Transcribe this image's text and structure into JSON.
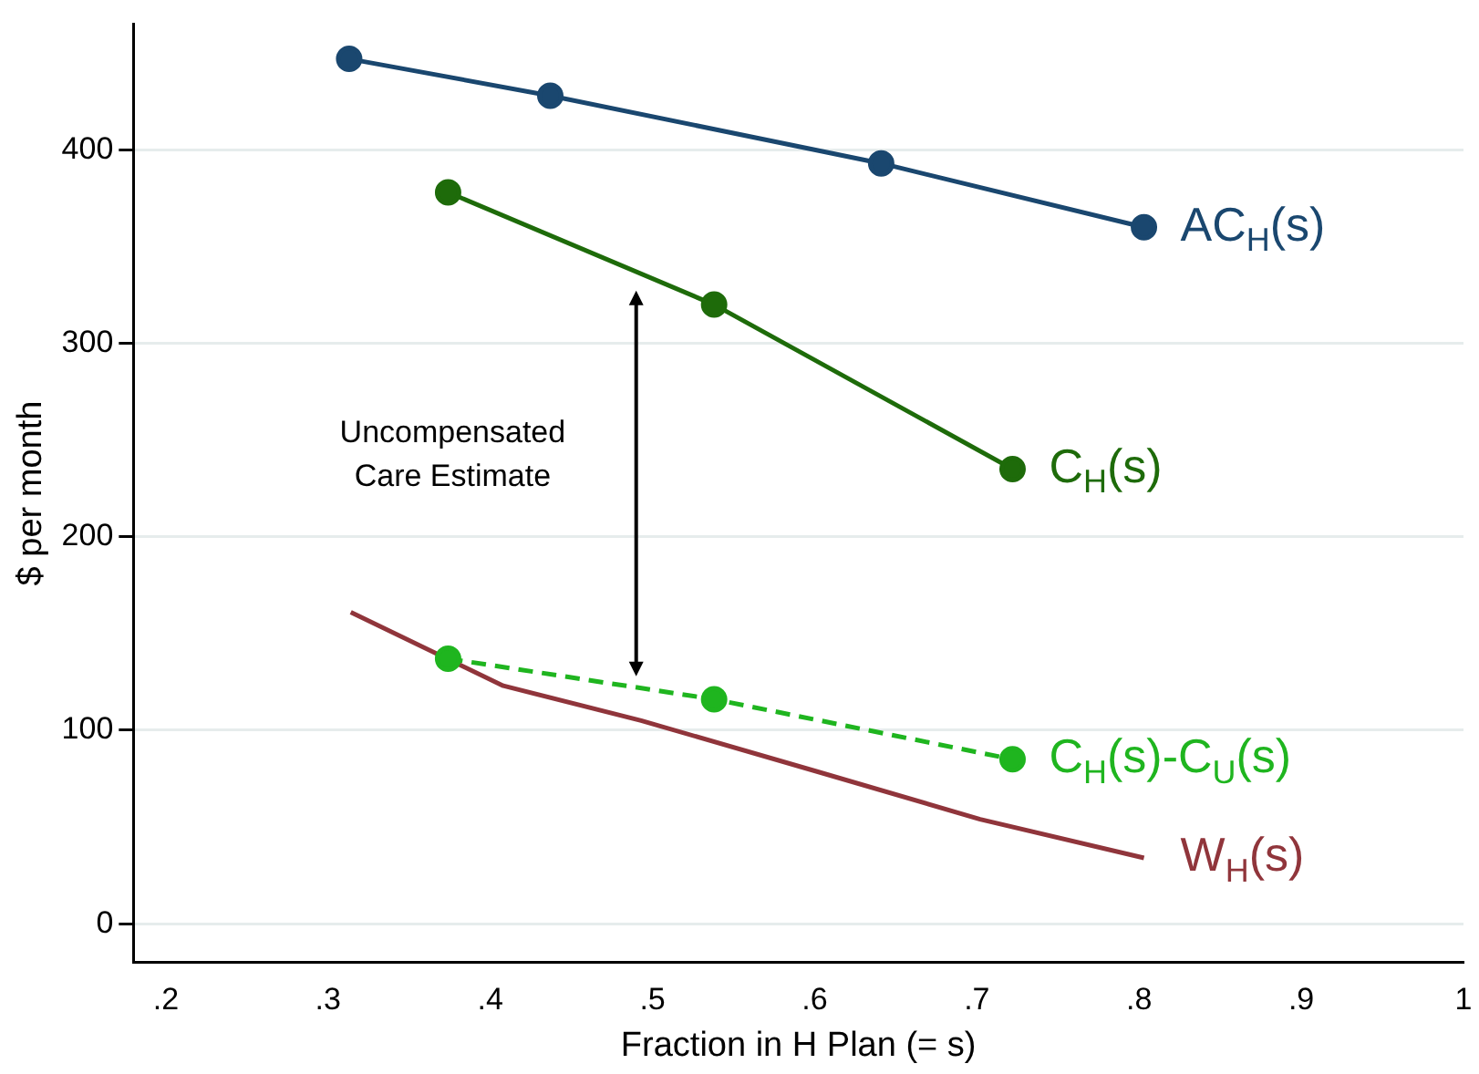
{
  "chart_data": {
    "type": "line",
    "xlabel": "Fraction in H Plan (= s)",
    "ylabel": "$ per month",
    "xlim": [
      0.18,
      1.0
    ],
    "xticks": [
      {
        "value": 0.2,
        "label": ".2"
      },
      {
        "value": 0.3,
        "label": ".3"
      },
      {
        "value": 0.4,
        "label": ".4"
      },
      {
        "value": 0.5,
        "label": ".5"
      },
      {
        "value": 0.6,
        "label": ".6"
      },
      {
        "value": 0.7,
        "label": ".7"
      },
      {
        "value": 0.8,
        "label": ".8"
      },
      {
        "value": 0.9,
        "label": ".9"
      },
      1
    ],
    "ylim": [
      -20,
      465
    ],
    "yticks": [
      0,
      100,
      200,
      300,
      400
    ],
    "grid": "y",
    "legend": false,
    "series": [
      {
        "name": "AC$_{H}$(s)",
        "color": "#1a476f",
        "marker": "circle",
        "line_style": "solid",
        "x": [
          0.313,
          0.437,
          0.641,
          0.803
        ],
        "values": [
          447,
          428,
          393,
          360
        ]
      },
      {
        "name": "C$_{H}$(s)",
        "color": "#1e6b0a",
        "marker": "circle",
        "line_style": "solid",
        "x": [
          0.374,
          0.538,
          0.722
        ],
        "values": [
          378,
          320,
          235
        ]
      },
      {
        "name": "C$_{H}$(s)-C$_{U}$(s)",
        "color": "#1fb51f",
        "marker": "circle",
        "line_style": "dashed",
        "x": [
          0.374,
          0.538,
          0.722
        ],
        "values": [
          137,
          116,
          85
        ]
      },
      {
        "name": "W$_{H}$(s)",
        "color": "#90353b",
        "marker": "none",
        "line_style": "solid",
        "x": [
          0.314,
          0.408,
          0.493,
          0.6,
          0.702,
          0.803
        ],
        "values": [
          161,
          123,
          105,
          79,
          54,
          34
        ]
      }
    ],
    "annotations": [
      "Uncompensated Care Estimate"
    ]
  }
}
